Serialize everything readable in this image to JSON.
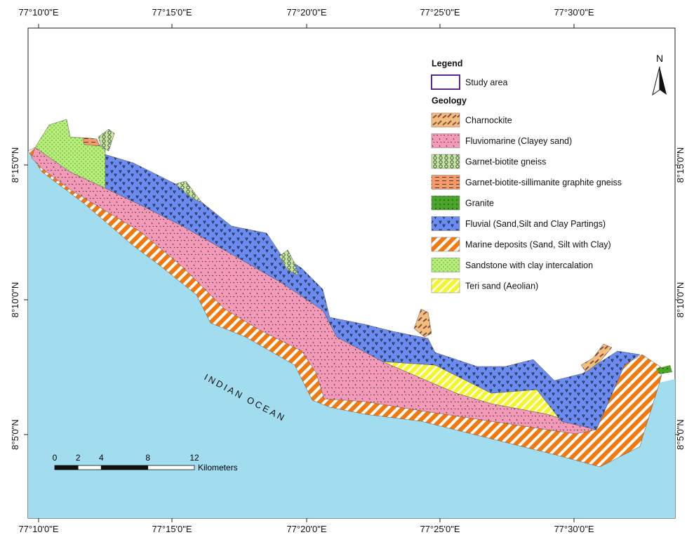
{
  "map": {
    "top_labels": [
      "77°10'0\"E",
      "77°15'0\"E",
      "77°20'0\"E",
      "77°25'0\"E",
      "77°30'0\"E"
    ],
    "bottom_labels": [
      "77°10'0\"E",
      "77°15'0\"E",
      "77°20'0\"E",
      "77°25'0\"E",
      "77°30'0\"E"
    ],
    "left_labels": [
      "8°15'0\"N",
      "8°10'0\"N",
      "8°5'0\"N"
    ],
    "right_labels": [
      "8°15'0\"N",
      "8°10'0\"N",
      "8°5'0\"N"
    ],
    "ocean_label": "INDIAN OCEAN",
    "north": "N",
    "scale": {
      "ticks": [
        0,
        2,
        4,
        8,
        12
      ],
      "unit": "Kilometers"
    },
    "legend": {
      "title": "Legend",
      "study_area": "Study area",
      "geology_title": "Geology",
      "items": [
        "Charnockite",
        "Fluviomarine (Clayey sand)",
        "Garnet-biotite gneiss",
        "Garnet-biotite-sillimanite graphite gneiss",
        "Granite",
        "Fluvial (Sand,Silt and Clay Partings)",
        "Marine deposits (Sand, Silt with Clay)",
        "Sandstone with clay intercalation",
        "Teri sand (Aeolian)"
      ]
    }
  }
}
